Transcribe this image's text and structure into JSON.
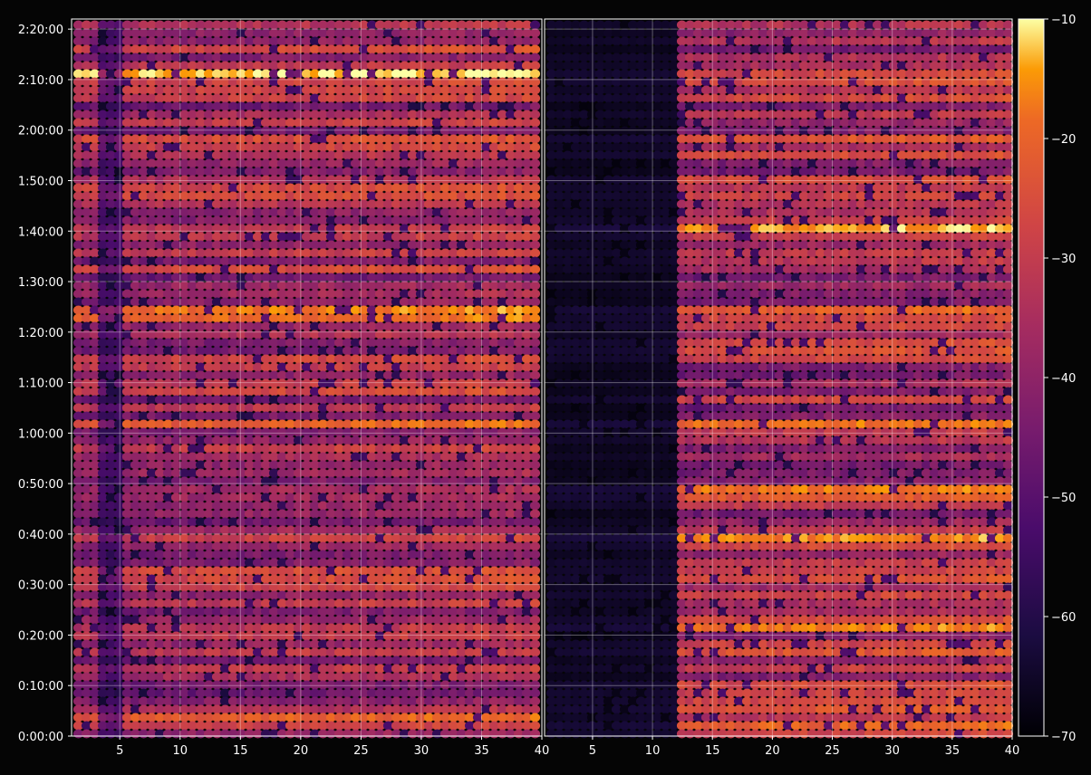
{
  "chart_data": [
    {
      "type": "heatmap",
      "title": "",
      "xlabel": "",
      "ylabel": "",
      "xlim": [
        1,
        40
      ],
      "xticks": [
        "5",
        "10",
        "15",
        "20",
        "25",
        "30",
        "35",
        "40"
      ],
      "ylim_seconds": [
        0,
        8520
      ],
      "yticks": [
        "0:00:00",
        "0:10:00",
        "0:20:00",
        "0:30:00",
        "0:40:00",
        "0:50:00",
        "1:00:00",
        "1:10:00",
        "1:20:00",
        "1:30:00",
        "1:40:00",
        "1:50:00",
        "2:00:00",
        "2:10:00",
        "2:20:00"
      ],
      "grid": true,
      "bright_rows_time": [
        "0:03:00",
        "0:05:00",
        "0:17:00",
        "0:22:00",
        "0:40:00",
        "0:49:00",
        "1:03:00",
        "1:23:00",
        "1:25:00",
        "1:41:00",
        "1:59:00",
        "2:12:00"
      ],
      "left_dark_band_channels": [
        3,
        5
      ]
    },
    {
      "type": "heatmap",
      "title": "",
      "xlabel": "",
      "ylabel": "",
      "xlim": [
        1,
        40
      ],
      "xticks": [
        "5",
        "10",
        "15",
        "20",
        "25",
        "30",
        "35",
        "40"
      ],
      "ylim_seconds": [
        0,
        8520
      ],
      "grid": true,
      "bright_rows_time": [
        "0:03:00",
        "0:05:00",
        "0:17:00",
        "0:22:00",
        "0:40:00",
        "0:49:00",
        "1:03:00",
        "1:23:00",
        "1:25:00",
        "1:41:00",
        "1:59:00",
        "2:12:00"
      ],
      "left_dark_band_channels": [
        1,
        12
      ]
    }
  ],
  "colorbar": {
    "colormap": "inferno",
    "range": [
      -70,
      -10
    ],
    "ticks": [
      "−10",
      "−20",
      "−30",
      "−40",
      "−50",
      "−60",
      "−70"
    ]
  }
}
